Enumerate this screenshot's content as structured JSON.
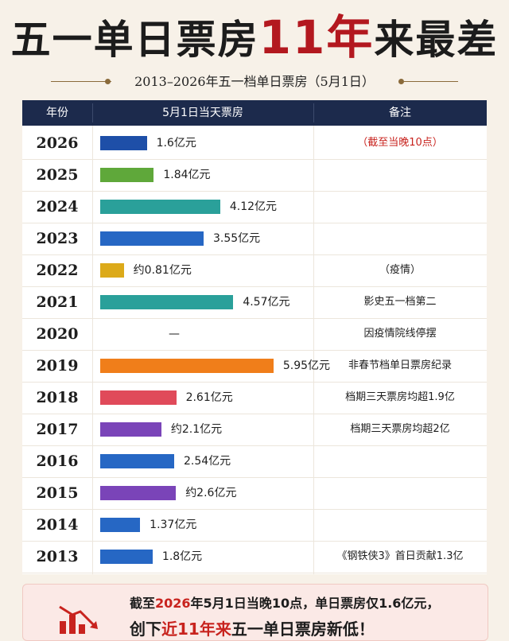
{
  "title": {
    "prefix": "五一单日票房",
    "highlight": "11年",
    "suffix": "来最差"
  },
  "subtitle": "2013–2026年五一档单日票房（5月1日）",
  "table_headers": {
    "year": "年份",
    "boxoffice": "5月1日当天票房",
    "note": "备注"
  },
  "colors": {
    "header": "#1c2a4c",
    "accent": "#b3181f"
  },
  "chart_data": {
    "type": "bar",
    "orientation": "horizontal",
    "unit": "亿元",
    "xlim": [
      0,
      6.5
    ],
    "rows": [
      {
        "year": "2026",
        "value": 1.6,
        "label": "1.6亿元",
        "color": "#1e4fa8",
        "note": "（截至当晚10点）",
        "note_red": true
      },
      {
        "year": "2025",
        "value": 1.84,
        "label": "1.84亿元",
        "color": "#5fa83a",
        "note": ""
      },
      {
        "year": "2024",
        "value": 4.12,
        "label": "4.12亿元",
        "color": "#2aa09a",
        "note": ""
      },
      {
        "year": "2023",
        "value": 3.55,
        "label": "3.55亿元",
        "color": "#2667c4",
        "note": ""
      },
      {
        "year": "2022",
        "value": 0.81,
        "label": "约0.81亿元",
        "color": "#dcaa1a",
        "note": "（疫情）"
      },
      {
        "year": "2021",
        "value": 4.57,
        "label": "4.57亿元",
        "color": "#2aa09a",
        "note": "影史五一档第二"
      },
      {
        "year": "2020",
        "value": null,
        "label": "—",
        "color": "#000000",
        "note": "因疫情院线停摆"
      },
      {
        "year": "2019",
        "value": 5.95,
        "label": "5.95亿元",
        "color": "#f07e1a",
        "note": "非春节档单日票房纪录"
      },
      {
        "year": "2018",
        "value": 2.61,
        "label": "2.61亿元",
        "color": "#e04a5a",
        "note": "档期三天票房均超1.9亿"
      },
      {
        "year": "2017",
        "value": 2.1,
        "label": "约2.1亿元",
        "color": "#7a44b8",
        "note": "档期三天票房均超2亿"
      },
      {
        "year": "2016",
        "value": 2.54,
        "label": "2.54亿元",
        "color": "#2667c4",
        "note": ""
      },
      {
        "year": "2015",
        "value": 2.6,
        "label": "约2.6亿元",
        "color": "#7a44b8",
        "note": ""
      },
      {
        "year": "2014",
        "value": 1.37,
        "label": "1.37亿元",
        "color": "#2667c4",
        "note": ""
      },
      {
        "year": "2013",
        "value": 1.8,
        "label": "1.8亿元",
        "color": "#2667c4",
        "note": "《钢铁侠3》首日贡献1.3亿"
      }
    ]
  },
  "banner": {
    "l1_a": "截至",
    "l1_b": "2026",
    "l1_c": "年5月1日当晚10点，单日票房仅1.6亿元，",
    "l2_a": "创下",
    "l2_b": "近11年来",
    "l2_c": "五一单日票房新低！"
  }
}
